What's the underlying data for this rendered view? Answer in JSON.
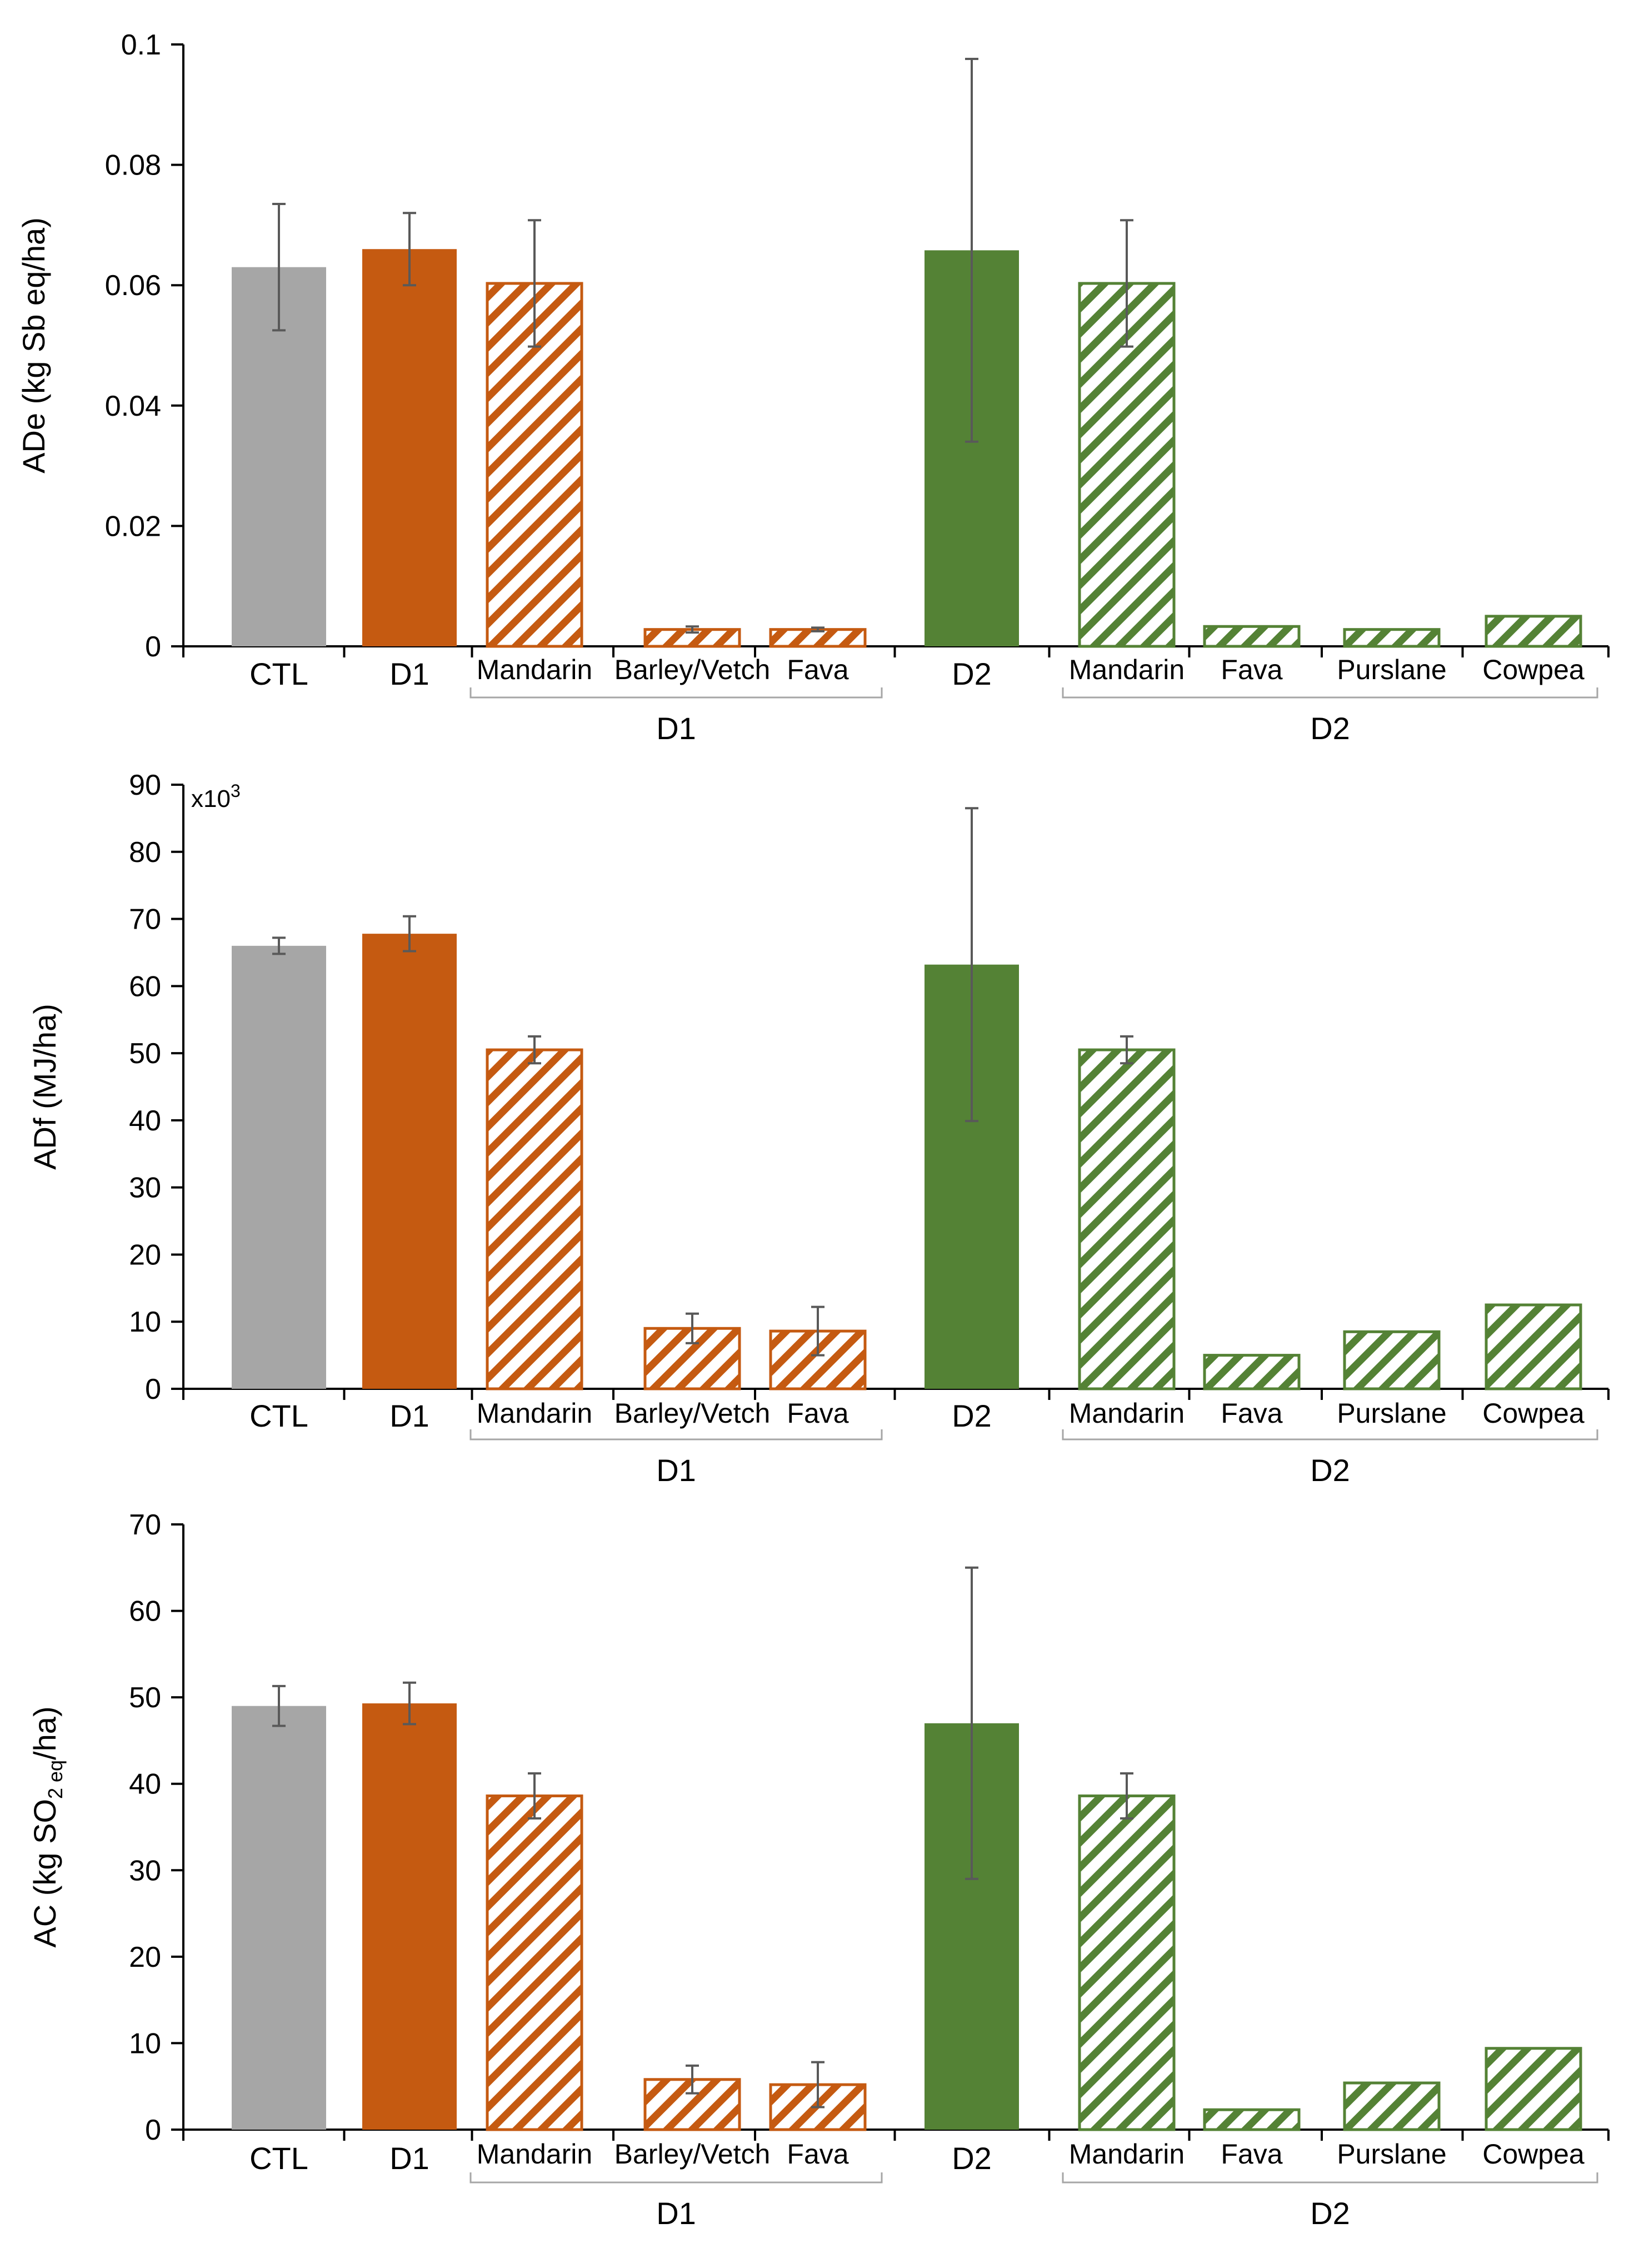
{
  "figure": {
    "colors": {
      "ctl": "#a6a6a6",
      "d1": "#c55a11",
      "d2": "#548235",
      "axis": "#000000",
      "errorbar": "#595959",
      "bracket": "#a6a6a6"
    }
  },
  "chart_data": [
    {
      "type": "bar",
      "id": "ade",
      "ylabel": "ADe (kg Sb eq/ha)",
      "ylabel_sub": "",
      "ylabel_post": "",
      "ylim": [
        0,
        0.1
      ],
      "yticks": [
        0,
        0.02,
        0.04,
        0.06,
        0.08,
        0.1
      ],
      "ytick_labels": [
        "0",
        "0.02",
        "0.04",
        "0.06",
        "0.08",
        "0.1"
      ],
      "multiplier": "",
      "groups": [
        {
          "label": "D1",
          "from": 2,
          "to": 4
        },
        {
          "label": "D2",
          "from": 6,
          "to": 9
        }
      ],
      "bars": [
        {
          "label": "CTL",
          "value": 0.063,
          "err": 0.0105,
          "color": "ctl",
          "hatch": false,
          "sub": false
        },
        {
          "label": "D1",
          "value": 0.066,
          "err": 0.006,
          "color": "d1",
          "hatch": false,
          "sub": false
        },
        {
          "label": "Mandarin",
          "value": 0.0603,
          "err": 0.0105,
          "color": "d1",
          "hatch": true,
          "sub": true
        },
        {
          "label": "Barley/Vetch",
          "value": 0.0028,
          "err": 0.0005,
          "color": "d1",
          "hatch": true,
          "sub": true
        },
        {
          "label": "Fava",
          "value": 0.0028,
          "err": 0.0003,
          "color": "d1",
          "hatch": true,
          "sub": true
        },
        {
          "label": "D2",
          "value": 0.0658,
          "err": 0.0318,
          "color": "d2",
          "hatch": false,
          "sub": false
        },
        {
          "label": "Mandarin",
          "value": 0.0603,
          "err": 0.0105,
          "color": "d2",
          "hatch": true,
          "sub": true
        },
        {
          "label": "Fava",
          "value": 0.0033,
          "err": null,
          "color": "d2",
          "hatch": true,
          "sub": true
        },
        {
          "label": "Purslane",
          "value": 0.0028,
          "err": null,
          "color": "d2",
          "hatch": true,
          "sub": true
        },
        {
          "label": "Cowpea",
          "value": 0.005,
          "err": null,
          "color": "d2",
          "hatch": true,
          "sub": true
        }
      ]
    },
    {
      "type": "bar",
      "id": "adf",
      "ylabel": "ADf (MJ/ha)",
      "ylabel_sub": "",
      "ylabel_post": "",
      "ylim": [
        0,
        90
      ],
      "yticks": [
        0,
        10,
        20,
        30,
        40,
        50,
        60,
        70,
        80,
        90
      ],
      "ytick_labels": [
        "0",
        "10",
        "20",
        "30",
        "40",
        "50",
        "60",
        "70",
        "80",
        "90"
      ],
      "multiplier": "x10",
      "multiplier_exp": "3",
      "groups": [
        {
          "label": "D1",
          "from": 2,
          "to": 4
        },
        {
          "label": "D2",
          "from": 6,
          "to": 9
        }
      ],
      "bars": [
        {
          "label": "CTL",
          "value": 66,
          "err": 1.2,
          "color": "ctl",
          "hatch": false,
          "sub": false
        },
        {
          "label": "D1",
          "value": 67.8,
          "err": 2.6,
          "color": "d1",
          "hatch": false,
          "sub": false
        },
        {
          "label": "Mandarin",
          "value": 50.5,
          "err": 2.0,
          "color": "d1",
          "hatch": true,
          "sub": true
        },
        {
          "label": "Barley/Vetch",
          "value": 9,
          "err": 2.2,
          "color": "d1",
          "hatch": true,
          "sub": true
        },
        {
          "label": "Fava",
          "value": 8.6,
          "err": 3.6,
          "color": "d1",
          "hatch": true,
          "sub": true
        },
        {
          "label": "D2",
          "value": 63.2,
          "err": 23.3,
          "color": "d2",
          "hatch": false,
          "sub": false
        },
        {
          "label": "Mandarin",
          "value": 50.5,
          "err": 2.0,
          "color": "d2",
          "hatch": true,
          "sub": true
        },
        {
          "label": "Fava",
          "value": 5,
          "err": null,
          "color": "d2",
          "hatch": true,
          "sub": true
        },
        {
          "label": "Purslane",
          "value": 8.5,
          "err": null,
          "color": "d2",
          "hatch": true,
          "sub": true
        },
        {
          "label": "Cowpea",
          "value": 12.5,
          "err": null,
          "color": "d2",
          "hatch": true,
          "sub": true
        }
      ]
    },
    {
      "type": "bar",
      "id": "ac",
      "ylabel": "AC (kg SO",
      "ylabel_sub": "2 eq",
      "ylabel_post": "/ha)",
      "ylim": [
        0,
        70
      ],
      "yticks": [
        0,
        10,
        20,
        30,
        40,
        50,
        60,
        70
      ],
      "ytick_labels": [
        "0",
        "10",
        "20",
        "30",
        "40",
        "50",
        "60",
        "70"
      ],
      "multiplier": "",
      "groups": [
        {
          "label": "D1",
          "from": 2,
          "to": 4
        },
        {
          "label": "D2",
          "from": 6,
          "to": 9
        }
      ],
      "bars": [
        {
          "label": "CTL",
          "value": 49,
          "err": 2.3,
          "color": "ctl",
          "hatch": false,
          "sub": false
        },
        {
          "label": "D1",
          "value": 49.3,
          "err": 2.4,
          "color": "d1",
          "hatch": false,
          "sub": false
        },
        {
          "label": "Mandarin",
          "value": 38.6,
          "err": 2.6,
          "color": "d1",
          "hatch": true,
          "sub": true
        },
        {
          "label": "Barley/Vetch",
          "value": 5.8,
          "err": 1.6,
          "color": "d1",
          "hatch": true,
          "sub": true
        },
        {
          "label": "Fava",
          "value": 5.2,
          "err": 2.6,
          "color": "d1",
          "hatch": true,
          "sub": true
        },
        {
          "label": "D2",
          "value": 47,
          "err": 18,
          "color": "d2",
          "hatch": false,
          "sub": false
        },
        {
          "label": "Mandarin",
          "value": 38.6,
          "err": 2.6,
          "color": "d2",
          "hatch": true,
          "sub": true
        },
        {
          "label": "Fava",
          "value": 2.3,
          "err": null,
          "color": "d2",
          "hatch": true,
          "sub": true
        },
        {
          "label": "Purslane",
          "value": 5.4,
          "err": null,
          "color": "d2",
          "hatch": true,
          "sub": true
        },
        {
          "label": "Cowpea",
          "value": 9.4,
          "err": null,
          "color": "d2",
          "hatch": true,
          "sub": true
        }
      ]
    }
  ]
}
